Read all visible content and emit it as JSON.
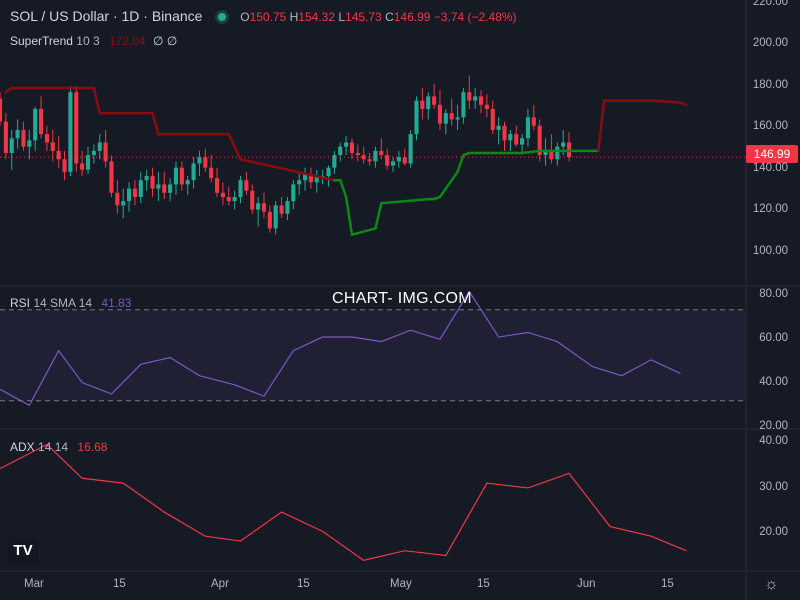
{
  "header": {
    "symbol": "SOL / US Dollar · 1D · Binance",
    "o_label": "O",
    "o_val": "150.75",
    "h_label": "H",
    "h_val": "154.32",
    "l_label": "L",
    "l_val": "145.73",
    "c_label": "C",
    "c_val": "146.99",
    "change": "−3.74 (−2.48%)"
  },
  "supertrend": {
    "label": "SuperTrend",
    "params": "10 3",
    "value": "172.04",
    "icons": "∅ ∅"
  },
  "rsi": {
    "label": "RSI",
    "params": "14 SMA 14",
    "value": "41.83"
  },
  "adx": {
    "label": "ADX",
    "params": "14 14",
    "value": "16.68"
  },
  "price_tag": "146.99",
  "watermark": "CHART- IMG.COM",
  "logo": "TV",
  "colors": {
    "up": "#22ab94",
    "down": "#f23645",
    "st_up": "#0a8a12",
    "st_down": "#8b0b10",
    "rsi": "#7e57c2",
    "adx": "#f23645",
    "bg": "#161a25"
  },
  "y_axis_price": [
    "220.00",
    "200.00",
    "180.00",
    "160.00",
    "140.00",
    "120.00",
    "100.00"
  ],
  "y_axis_rsi": [
    "80.00",
    "60.00",
    "40.00",
    "20.00"
  ],
  "y_axis_adx": [
    "40.00",
    "30.00",
    "20.00"
  ],
  "x_axis": [
    "Mar",
    "15",
    "Apr",
    "15",
    "May",
    "15",
    "Jun",
    "15"
  ],
  "chart_data": [
    {
      "type": "candlestick",
      "title": "SOL / US Dollar · 1D · Binance",
      "ylim": [
        86,
        222
      ],
      "x_range": [
        "2024-02-20",
        "2024-06-26"
      ],
      "series": [
        {
          "name": "SuperTrend",
          "x": [
            "2024-02-21",
            "2024-02-22",
            "2024-02-29",
            "2024-03-07",
            "2024-03-08",
            "2024-03-17",
            "2024-03-18",
            "2024-03-30",
            "2024-04-01",
            "2024-04-17",
            "2024-04-18",
            "2024-04-19",
            "2024-04-20",
            "2024-04-24",
            "2024-04-25",
            "2024-05-03",
            "2024-05-04",
            "2024-05-05",
            "2024-05-08",
            "2024-05-09",
            "2024-05-10",
            "2024-05-19",
            "2024-05-22",
            "2024-05-31",
            "2024-06-01",
            "2024-06-02",
            "2024-06-10",
            "2024-06-15",
            "2024-06-16"
          ],
          "values": [
            178,
            180,
            180,
            180,
            168,
            168,
            158,
            158,
            146,
            136,
            136,
            128,
            110,
            113,
            125,
            127,
            127,
            128,
            140,
            148,
            149,
            149,
            150,
            150,
            150,
            174,
            174,
            173,
            172
          ],
          "trend": [
            "down",
            "down",
            "down",
            "down",
            "down",
            "down",
            "down",
            "down",
            "down",
            "down",
            "up",
            "up",
            "up",
            "up",
            "up",
            "up",
            "up",
            "up",
            "up",
            "up",
            "up",
            "up",
            "up",
            "up",
            "up",
            "down",
            "down",
            "down",
            "down"
          ]
        }
      ],
      "candles": [
        [
          175,
          178,
          162,
          164
        ],
        [
          164,
          168,
          146,
          149
        ],
        [
          149,
          160,
          141,
          156
        ],
        [
          156,
          165,
          151,
          160
        ],
        [
          160,
          164,
          150,
          152
        ],
        [
          152,
          160,
          146,
          155
        ],
        [
          155,
          171,
          150,
          170
        ],
        [
          170,
          176,
          156,
          158
        ],
        [
          158,
          162,
          150,
          154
        ],
        [
          154,
          160,
          145,
          150
        ],
        [
          150,
          157,
          142,
          146
        ],
        [
          146,
          150,
          136,
          140
        ],
        [
          140,
          181,
          138,
          178
        ],
        [
          178,
          181,
          140,
          144
        ],
        [
          144,
          150,
          138,
          141
        ],
        [
          141,
          152,
          139,
          148
        ],
        [
          148,
          153,
          144,
          150
        ],
        [
          150,
          158,
          146,
          154
        ],
        [
          154,
          160,
          142,
          145
        ],
        [
          145,
          148,
          128,
          130
        ],
        [
          130,
          136,
          120,
          124
        ],
        [
          124,
          132,
          118,
          126
        ],
        [
          126,
          135,
          121,
          132
        ],
        [
          132,
          136,
          124,
          128
        ],
        [
          128,
          140,
          125,
          136
        ],
        [
          136,
          141,
          131,
          138
        ],
        [
          138,
          142,
          128,
          132
        ],
        [
          132,
          140,
          126,
          134
        ],
        [
          134,
          140,
          127,
          130
        ],
        [
          130,
          137,
          126,
          134
        ],
        [
          134,
          145,
          129,
          142
        ],
        [
          142,
          145,
          131,
          134
        ],
        [
          134,
          138,
          129,
          136
        ],
        [
          136,
          147,
          132,
          144
        ],
        [
          144,
          150,
          138,
          147
        ],
        [
          147,
          151,
          140,
          142
        ],
        [
          142,
          148,
          135,
          137
        ],
        [
          137,
          142,
          128,
          130
        ],
        [
          130,
          135,
          124,
          128
        ],
        [
          128,
          133,
          124,
          126
        ],
        [
          126,
          131,
          122,
          128
        ],
        [
          128,
          138,
          125,
          136
        ],
        [
          136,
          140,
          129,
          131
        ],
        [
          131,
          134,
          120,
          122
        ],
        [
          122,
          128,
          114,
          125
        ],
        [
          125,
          130,
          118,
          121
        ],
        [
          121,
          124,
          111,
          113
        ],
        [
          113,
          126,
          110,
          124
        ],
        [
          124,
          128,
          118,
          120
        ],
        [
          120,
          128,
          117,
          126
        ],
        [
          126,
          136,
          122,
          134
        ],
        [
          134,
          140,
          129,
          136
        ],
        [
          136,
          142,
          131,
          139
        ],
        [
          139,
          142,
          132,
          135
        ],
        [
          135,
          141,
          130,
          138
        ],
        [
          138,
          141,
          134,
          138
        ],
        [
          138,
          143,
          133,
          142
        ],
        [
          142,
          150,
          139,
          148
        ],
        [
          148,
          154,
          145,
          152
        ],
        [
          152,
          157,
          148,
          154
        ],
        [
          154,
          156,
          146,
          149
        ],
        [
          149,
          153,
          145,
          148
        ],
        [
          148,
          152,
          144,
          146
        ],
        [
          146,
          149,
          143,
          145
        ],
        [
          145,
          152,
          142,
          150
        ],
        [
          150,
          156,
          146,
          148
        ],
        [
          148,
          151,
          141,
          143
        ],
        [
          143,
          147,
          140,
          145
        ],
        [
          145,
          150,
          142,
          147
        ],
        [
          147,
          151,
          143,
          144
        ],
        [
          144,
          160,
          142,
          158
        ],
        [
          158,
          176,
          155,
          174
        ],
        [
          174,
          180,
          165,
          170
        ],
        [
          170,
          178,
          165,
          176
        ],
        [
          176,
          182,
          170,
          172
        ],
        [
          172,
          179,
          160,
          163
        ],
        [
          163,
          170,
          158,
          168
        ],
        [
          168,
          175,
          162,
          165
        ],
        [
          165,
          172,
          160,
          166
        ],
        [
          166,
          180,
          163,
          178
        ],
        [
          178,
          186,
          170,
          174
        ],
        [
          174,
          180,
          170,
          176
        ],
        [
          176,
          179,
          168,
          172
        ],
        [
          172,
          177,
          166,
          170
        ],
        [
          170,
          174,
          158,
          160
        ],
        [
          160,
          166,
          153,
          162
        ],
        [
          162,
          164,
          150,
          155
        ],
        [
          155,
          160,
          150,
          158
        ],
        [
          158,
          162,
          152,
          153
        ],
        [
          153,
          158,
          149,
          156
        ],
        [
          156,
          170,
          152,
          166
        ],
        [
          166,
          172,
          160,
          162
        ],
        [
          162,
          165,
          145,
          148
        ],
        [
          148,
          156,
          143,
          150
        ],
        [
          150,
          158,
          144,
          146
        ],
        [
          146,
          154,
          143,
          152
        ],
        [
          152,
          160,
          148,
          154
        ],
        [
          154,
          159,
          145,
          147
        ]
      ]
    },
    {
      "type": "line",
      "title": "RSI 14 SMA 14",
      "ylim": [
        18,
        80
      ],
      "bands": [
        30,
        70
      ],
      "series": [
        {
          "name": "RSI",
          "x": [
            "2024-02-20",
            "2024-02-25",
            "2024-03-01",
            "2024-03-05",
            "2024-03-10",
            "2024-03-15",
            "2024-03-20",
            "2024-03-25",
            "2024-03-31",
            "2024-04-05",
            "2024-04-10",
            "2024-04-15",
            "2024-04-20",
            "2024-04-25",
            "2024-04-30",
            "2024-05-05",
            "2024-05-10",
            "2024-05-15",
            "2024-05-20",
            "2024-05-25",
            "2024-05-31",
            "2024-06-05",
            "2024-06-10",
            "2024-06-15"
          ],
          "values": [
            35,
            28,
            52,
            38,
            33,
            46,
            49,
            41,
            37,
            32,
            52,
            58,
            58,
            56,
            61,
            57,
            78,
            58,
            60,
            56,
            45,
            41,
            48,
            42
          ]
        }
      ]
    },
    {
      "type": "line",
      "title": "ADX 14 14",
      "ylim": [
        13,
        42
      ],
      "series": [
        {
          "name": "ADX",
          "x": [
            "2024-02-20",
            "2024-02-28",
            "2024-03-05",
            "2024-03-12",
            "2024-03-19",
            "2024-03-26",
            "2024-04-01",
            "2024-04-08",
            "2024-04-15",
            "2024-04-22",
            "2024-04-29",
            "2024-05-06",
            "2024-05-13",
            "2024-05-20",
            "2024-05-27",
            "2024-06-03",
            "2024-06-10",
            "2024-06-16"
          ],
          "values": [
            34,
            39,
            32,
            31,
            25,
            20,
            19,
            25,
            21,
            15,
            17,
            16,
            31,
            30,
            33,
            22,
            20,
            17
          ]
        }
      ]
    }
  ]
}
